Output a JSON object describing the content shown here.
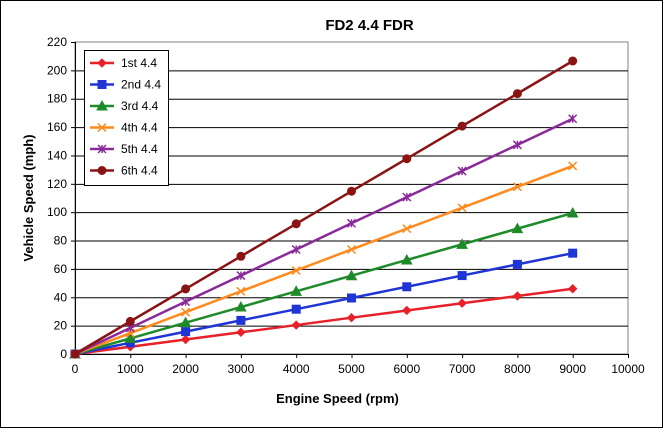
{
  "chart_data": {
    "type": "line",
    "title": "FD2 4.4 FDR",
    "xlabel": "Engine Speed (rpm)",
    "ylabel": "Vehicle Speed (mph)",
    "xlim": [
      0,
      10000
    ],
    "ylim": [
      0,
      220
    ],
    "xticks": [
      "0",
      "1000",
      "2000",
      "3000",
      "4000",
      "5000",
      "6000",
      "7000",
      "8000",
      "9000",
      "10000"
    ],
    "yticks": [
      "0",
      "20",
      "40",
      "60",
      "80",
      "100",
      "120",
      "140",
      "160",
      "180",
      "200",
      "220"
    ],
    "grid": true,
    "legend_position": "top-left",
    "x": [
      0,
      1000,
      2000,
      3000,
      4000,
      5000,
      6000,
      7000,
      8000,
      9000
    ],
    "series": [
      {
        "name": "1st 4.4",
        "color": "#e8202a",
        "marker": "diamond",
        "values": [
          0,
          5.1,
          10.2,
          15.3,
          20.4,
          25.6,
          30.7,
          35.8,
          40.9,
          46.0
        ]
      },
      {
        "name": "2nd 4.4",
        "color": "#1f35d6",
        "marker": "square",
        "values": [
          0,
          7.9,
          15.8,
          23.7,
          31.6,
          39.5,
          47.4,
          55.3,
          63.2,
          71.1
        ]
      },
      {
        "name": "3rd 4.4",
        "color": "#1e8a2a",
        "marker": "triangle",
        "values": [
          0,
          11.0,
          22.1,
          33.1,
          44.2,
          55.2,
          66.3,
          77.3,
          88.4,
          99.4
        ]
      },
      {
        "name": "4th 4.4",
        "color": "#ff8a1e",
        "marker": "x",
        "values": [
          0,
          14.7,
          29.5,
          44.2,
          58.9,
          73.7,
          88.4,
          103.1,
          117.9,
          132.6
        ]
      },
      {
        "name": "5th 4.4",
        "color": "#8a2a9a",
        "marker": "star",
        "values": [
          0,
          18.4,
          36.9,
          55.3,
          73.7,
          92.2,
          110.6,
          129.0,
          147.5,
          165.9
        ]
      },
      {
        "name": "6th 4.4",
        "color": "#8a1414",
        "marker": "circle",
        "values": [
          0,
          23.0,
          45.9,
          68.9,
          91.8,
          114.8,
          137.7,
          160.7,
          183.6,
          206.6
        ]
      }
    ]
  }
}
